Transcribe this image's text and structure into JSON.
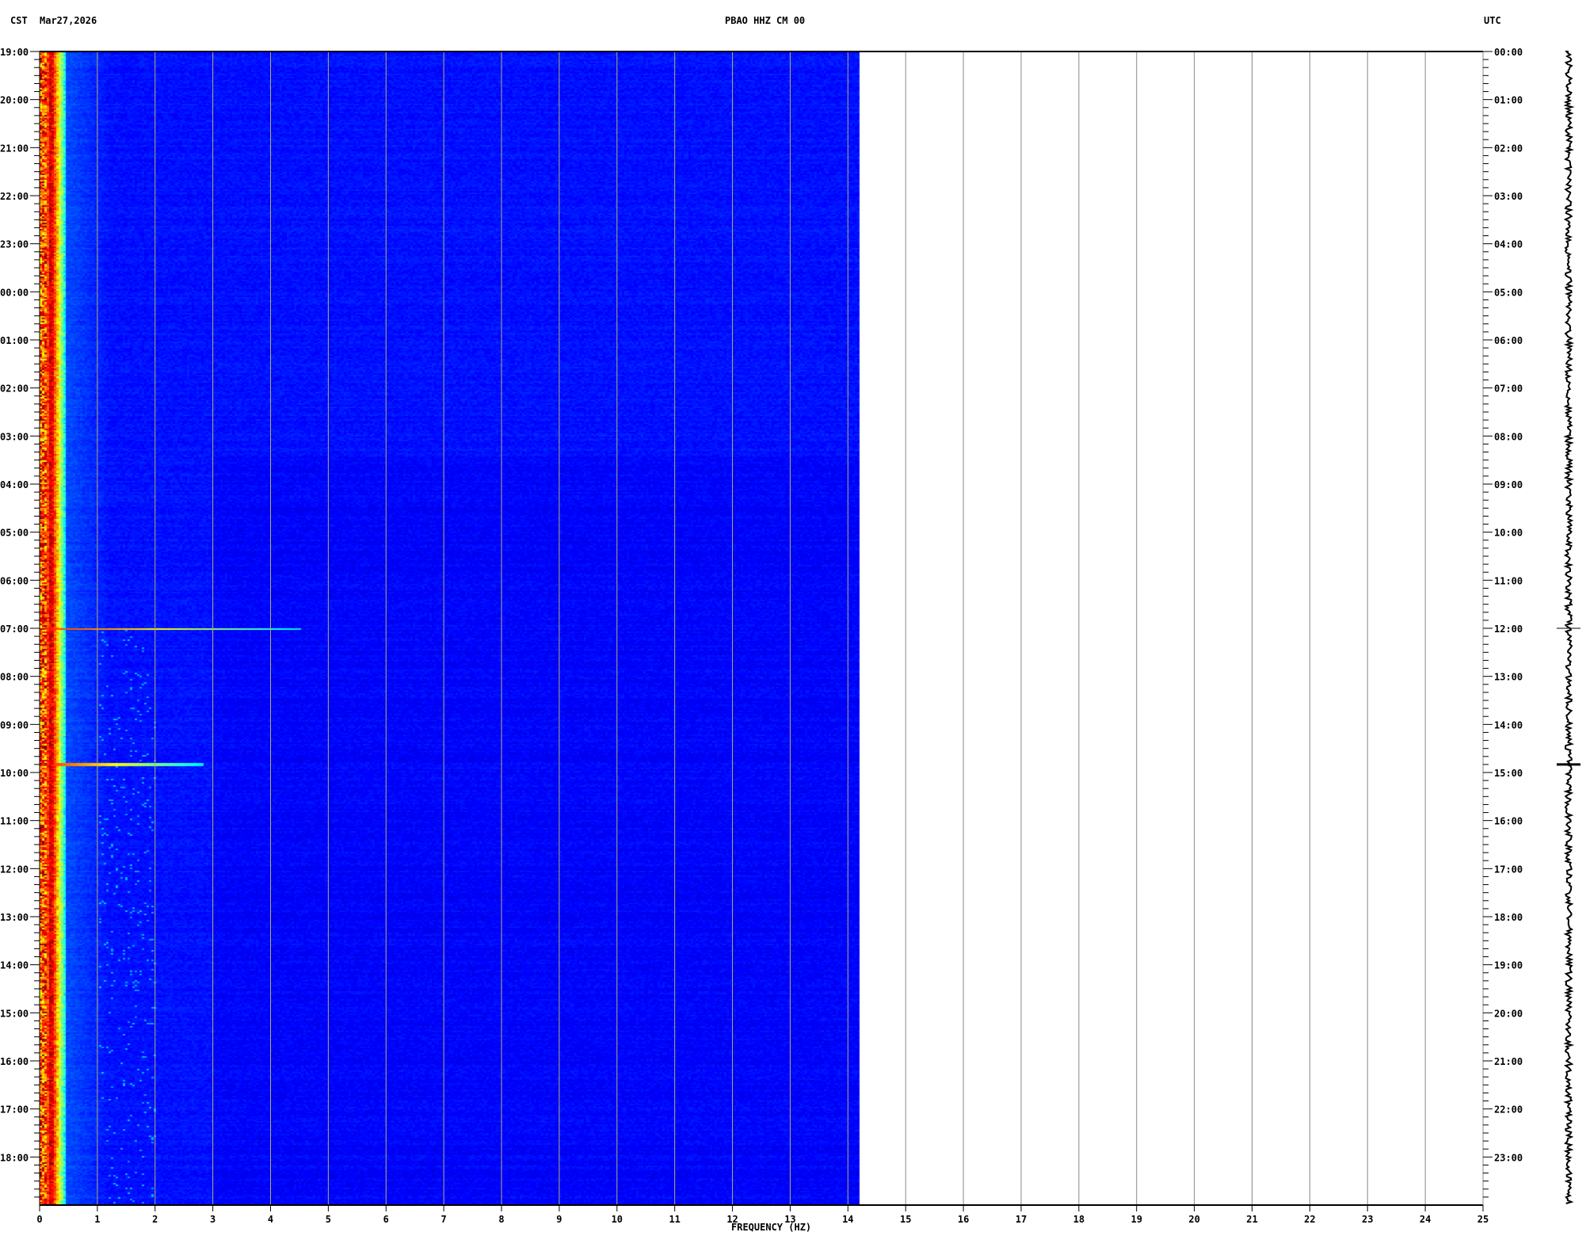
{
  "header": {
    "left_tz": "CST",
    "date": "Mar27,2026",
    "title": "PBAO HHZ CM 00",
    "right_tz": "UTC"
  },
  "footer_mark": "x",
  "chart_data": {
    "type": "heatmap",
    "title": "PBAO HHZ CM 00",
    "xlabel": "FREQUENCY (HZ)",
    "xlim": [
      0,
      25
    ],
    "x_ticks": [
      "0",
      "1",
      "2",
      "3",
      "4",
      "5",
      "6",
      "7",
      "8",
      "9",
      "10",
      "11",
      "12",
      "13",
      "14",
      "15",
      "16",
      "17",
      "18",
      "19",
      "20",
      "21",
      "22",
      "23",
      "24",
      "25"
    ],
    "data_freq_max": 14.2,
    "y_left_ticks": [
      "19:00",
      "20:00",
      "21:00",
      "22:00",
      "23:00",
      "00:00",
      "01:00",
      "02:00",
      "03:00",
      "04:00",
      "05:00",
      "06:00",
      "07:00",
      "08:00",
      "09:00",
      "10:00",
      "11:00",
      "12:00",
      "13:00",
      "14:00",
      "15:00",
      "16:00",
      "17:00",
      "18:00"
    ],
    "y_right_ticks": [
      "00:00",
      "01:00",
      "02:00",
      "03:00",
      "04:00",
      "05:00",
      "06:00",
      "07:00",
      "08:00",
      "09:00",
      "10:00",
      "11:00",
      "12:00",
      "13:00",
      "14:00",
      "15:00",
      "16:00",
      "17:00",
      "18:00",
      "19:00",
      "20:00",
      "21:00",
      "22:00",
      "23:00"
    ],
    "colormap": "jet",
    "background_color": "#0000a8",
    "grid": true,
    "features": [
      {
        "kind": "persistent band",
        "freq_range_hz": [
          0.1,
          0.3
        ],
        "level": "high"
      },
      {
        "kind": "event",
        "time_cst": "09:50",
        "freq_range_hz": [
          0,
          2.8
        ]
      },
      {
        "kind": "event",
        "time_cst": "07:00",
        "freq_range_hz": [
          0,
          4.5
        ]
      }
    ]
  }
}
